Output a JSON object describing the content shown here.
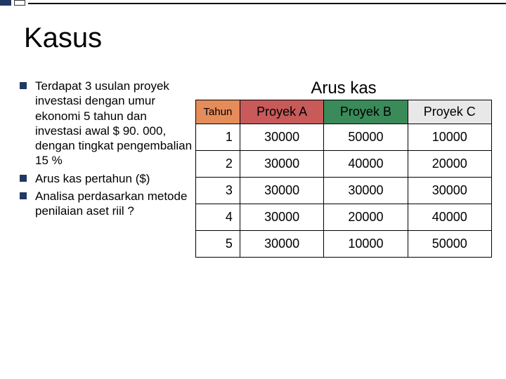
{
  "title": "Kasus",
  "bullets": [
    "Terdapat 3 usulan proyek investasi dengan umur ekonomi 5 tahun dan investasi awal $ 90. 000, dengan tingkat pengembalian 15 %",
    "Arus kas pertahun ($)",
    "Analisa perdasarkan metode penilaian aset riil ?"
  ],
  "table": {
    "title": "Arus kas",
    "headers": {
      "tahun": "Tahun",
      "a": "Proyek A",
      "b": "Proyek B",
      "c": "Proyek C"
    },
    "colors": {
      "tahun": "#e48c5a",
      "a": "#c85a5a",
      "b": "#3a8a5a",
      "c": "#e8e8e8",
      "border": "#000000"
    },
    "rows": [
      {
        "year": "1",
        "a": "30000",
        "b": "50000",
        "c": "10000"
      },
      {
        "year": "2",
        "a": "30000",
        "b": "40000",
        "c": "20000"
      },
      {
        "year": "3",
        "a": "30000",
        "b": "30000",
        "c": "30000"
      },
      {
        "year": "4",
        "a": "30000",
        "b": "20000",
        "c": "40000"
      },
      {
        "year": "5",
        "a": "30000",
        "b": "10000",
        "c": "50000"
      }
    ]
  }
}
